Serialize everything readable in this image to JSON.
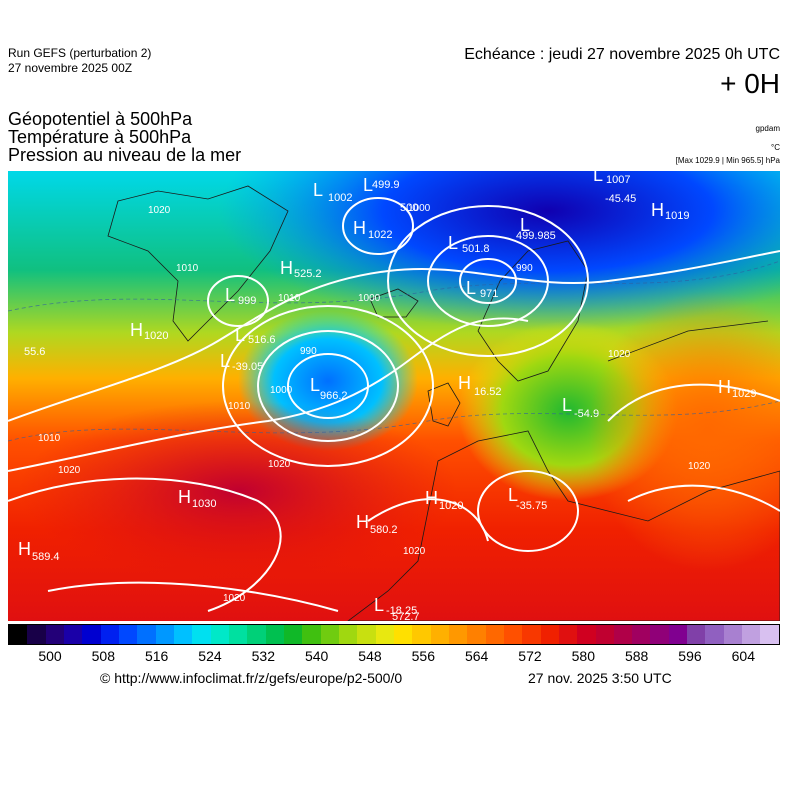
{
  "header": {
    "run": "Run GEFS (perturbation 2)",
    "run_date": "27 novembre 2025 00Z",
    "echeance": "Echéance : jeudi 27 novembre 2025 0h UTC",
    "lead": "+ 0H"
  },
  "titles": {
    "line1": "Géopotentiel à 500hPa",
    "line2": "Température à 500hPa",
    "line3": "Pression au niveau de la mer"
  },
  "units": {
    "geopotential": "gpdam",
    "temperature": "°C",
    "pressure": "[Max 1029.9 | Min 965.5] hPa"
  },
  "map_labels": [
    {
      "text": "L",
      "name": "low-marker"
    },
    {
      "text": "499.9",
      "name": "value-label"
    },
    {
      "text": "L",
      "name": "low-marker"
    },
    {
      "text": "1002",
      "name": "pressure-label"
    },
    {
      "text": "500",
      "name": "value-label"
    },
    {
      "text": "H",
      "name": "high-marker"
    },
    {
      "text": "1022",
      "name": "pressure-label"
    },
    {
      "text": "L",
      "name": "low-marker"
    },
    {
      "text": "1007",
      "name": "pressure-label"
    },
    {
      "text": "-45.45",
      "name": "value-label"
    },
    {
      "text": "H",
      "name": "high-marker"
    },
    {
      "text": "1019",
      "name": "pressure-label"
    },
    {
      "text": "L",
      "name": "low-marker"
    },
    {
      "text": "501.8",
      "name": "value-label"
    },
    {
      "text": "L",
      "name": "low-marker"
    },
    {
      "text": "499.985",
      "name": "value-label"
    },
    {
      "text": "L",
      "name": "low-marker"
    },
    {
      "text": "971",
      "name": "pressure-label"
    },
    {
      "text": "H",
      "name": "high-marker"
    },
    {
      "text": "525.2",
      "name": "value-label"
    },
    {
      "text": "L",
      "name": "low-marker"
    },
    {
      "text": "999",
      "name": "pressure-label"
    },
    {
      "text": "H",
      "name": "high-marker"
    },
    {
      "text": "1020",
      "name": "pressure-label"
    },
    {
      "text": "L",
      "name": "low-marker"
    },
    {
      "text": "516.6",
      "name": "value-label"
    },
    {
      "text": "L",
      "name": "low-marker"
    },
    {
      "text": "-39.05",
      "name": "value-label"
    },
    {
      "text": "L",
      "name": "low-marker"
    },
    {
      "text": "966.2",
      "name": "value-label"
    },
    {
      "text": "H",
      "name": "high-marker"
    },
    {
      "text": "1029",
      "name": "pressure-label"
    },
    {
      "text": "H",
      "name": "high-marker"
    },
    {
      "text": "16.52",
      "name": "value-label"
    },
    {
      "text": "L",
      "name": "low-marker"
    },
    {
      "text": "-54.9",
      "name": "value-label"
    },
    {
      "text": "H",
      "name": "high-marker"
    },
    {
      "text": "1030",
      "name": "pressure-label"
    },
    {
      "text": "H",
      "name": "high-marker"
    },
    {
      "text": "1020",
      "name": "pressure-label"
    },
    {
      "text": "L",
      "name": "low-marker"
    },
    {
      "text": "-35.75",
      "name": "value-label"
    },
    {
      "text": "H",
      "name": "high-marker"
    },
    {
      "text": "580.2",
      "name": "value-label"
    },
    {
      "text": "H",
      "name": "high-marker"
    },
    {
      "text": "589.4",
      "name": "value-label"
    },
    {
      "text": "L",
      "name": "low-marker"
    },
    {
      "text": "-18.25",
      "name": "value-label"
    },
    {
      "text": "572.7",
      "name": "value-label"
    },
    {
      "text": "55.6",
      "name": "value-label"
    }
  ],
  "isobar_labels": [
    "1020",
    "1010",
    "1000",
    "990",
    "1010",
    "1020",
    "1010",
    "1000",
    "1000",
    "1010",
    "1020",
    "1020",
    "1020",
    "1020",
    "1020",
    "990"
  ],
  "colorbar": {
    "colors": [
      "#000000",
      "#180048",
      "#230078",
      "#1a00a8",
      "#0000d0",
      "#0020f0",
      "#0048ff",
      "#0070ff",
      "#0098ff",
      "#00c0ff",
      "#00e0f0",
      "#00e8c8",
      "#00e0a0",
      "#00d078",
      "#00c050",
      "#10b828",
      "#40c010",
      "#70cc10",
      "#a0d810",
      "#c8e010",
      "#e8e810",
      "#ffe000",
      "#ffc800",
      "#ffb000",
      "#ff9800",
      "#ff8000",
      "#ff6800",
      "#ff5000",
      "#f83800",
      "#f02000",
      "#e01010",
      "#d00020",
      "#c00030",
      "#b00048",
      "#a00060",
      "#900078",
      "#800090",
      "#8040a8",
      "#9060c0",
      "#a880d0",
      "#c0a0e0",
      "#d8c0f0"
    ],
    "ticks": [
      "500",
      "508",
      "516",
      "524",
      "532",
      "540",
      "548",
      "556",
      "564",
      "572",
      "580",
      "588",
      "596",
      "604"
    ]
  },
  "footer": {
    "copyright": "© http://www.infoclimat.fr/z/gefs/europe/p2-500/0",
    "generated": "27 nov. 2025  3:50 UTC"
  }
}
